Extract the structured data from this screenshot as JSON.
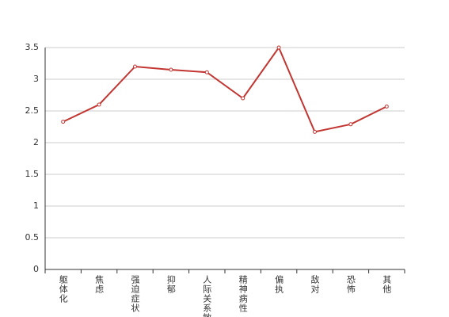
{
  "chart_data": {
    "type": "line",
    "categories": [
      "躯体化",
      "焦虑",
      "强迫症状",
      "抑郁",
      "人际关系敏感",
      "精神病性",
      "偏执",
      "敌对",
      "恐怖",
      "其他"
    ],
    "values": [
      2.33,
      2.6,
      3.2,
      3.15,
      3.11,
      2.7,
      3.5,
      2.17,
      2.29,
      2.57
    ],
    "color": "#c23531",
    "ylim": [
      0,
      3.5
    ],
    "yticks": [
      0,
      0.5,
      1,
      1.5,
      2,
      2.5,
      3,
      3.5
    ],
    "grid": true
  }
}
